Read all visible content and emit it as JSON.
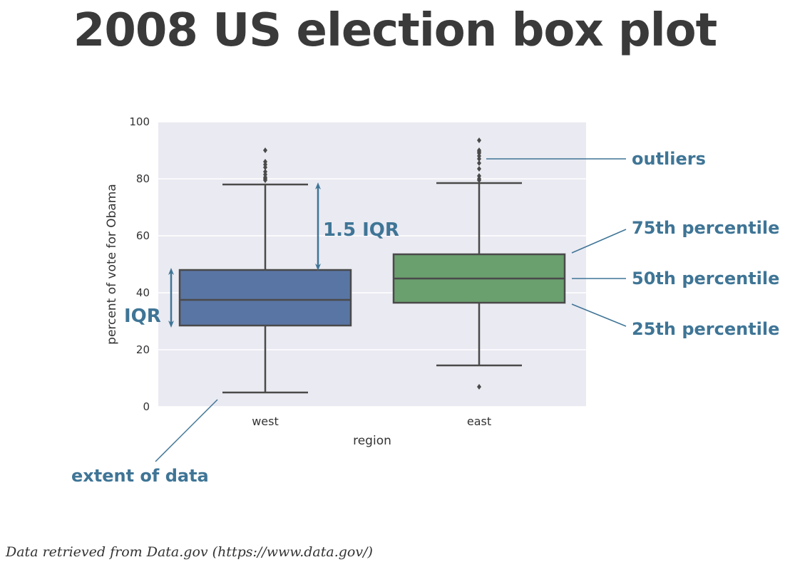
{
  "title": "2008 US election box plot",
  "source": "Data retrieved from Data.gov (https://www.data.gov/)",
  "colors": {
    "plot_bg": "#eaeaf2",
    "grid": "#ffffff",
    "line": "#4a4a4a",
    "annotation": "#3f7596",
    "west": "#5975a4",
    "east": "#6a9f6e"
  },
  "chart_data": {
    "type": "box",
    "xlabel": "region",
    "ylabel": "percent of vote for Obama",
    "ylim": [
      0,
      100
    ],
    "yticks": [
      0,
      20,
      40,
      60,
      80,
      100
    ],
    "grid": true,
    "categories": [
      "west",
      "east"
    ],
    "boxes": [
      {
        "category": "west",
        "whisker_low": 5,
        "q1": 28.5,
        "median": 37.5,
        "q3": 48,
        "whisker_high": 78,
        "outliers": [
          79.5,
          80,
          80.5,
          81.5,
          82.5,
          84,
          85,
          86,
          90
        ]
      },
      {
        "category": "east",
        "whisker_low": 14.5,
        "q1": 36.5,
        "median": 45,
        "q3": 53.5,
        "whisker_high": 78.5,
        "outliers": [
          7,
          79.5,
          80,
          81,
          83.5,
          85.5,
          87,
          88,
          89,
          89.5,
          90,
          93.5
        ]
      }
    ],
    "annotations": [
      {
        "id": "outliers",
        "text": "outliers"
      },
      {
        "id": "p75",
        "text": "75th percentile"
      },
      {
        "id": "p50",
        "text": "50th percentile"
      },
      {
        "id": "p25",
        "text": "25th percentile"
      },
      {
        "id": "extent",
        "text": "extent of data"
      },
      {
        "id": "iqr",
        "text": "IQR"
      },
      {
        "id": "iqr15",
        "text": "1.5 IQR"
      }
    ]
  }
}
